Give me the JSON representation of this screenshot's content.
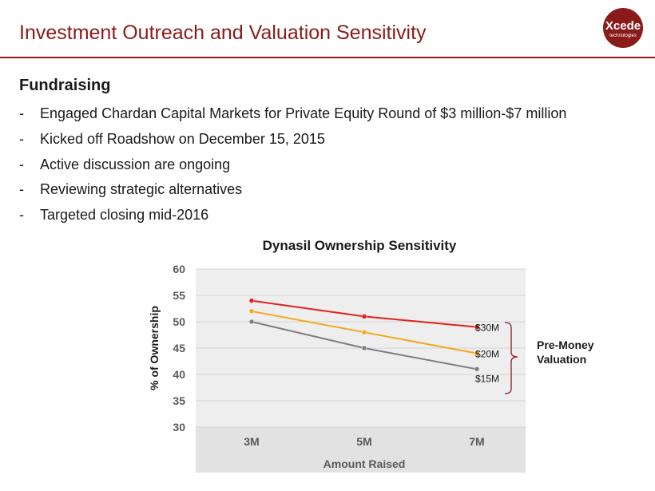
{
  "slide": {
    "title": "Investment Outreach and Valuation Sensitivity",
    "logo": {
      "name": "Xcede",
      "tagline": "technologies",
      "color": "#8b1a1a"
    },
    "section_heading": "Fundraising",
    "bullet_marker": "-",
    "bullets": [
      "Engaged Chardan Capital Markets for Private Equity Round of $3 million-$7 million",
      "Kicked off Roadshow on December 15, 2015",
      "Active discussion are ongoing",
      "Reviewing strategic alternatives",
      "Targeted closing mid-2016"
    ],
    "bracket_label": "Pre-Money Valuation",
    "accent_color": "#8b1a1a"
  },
  "chart_data": {
    "type": "line",
    "title": "Dynasil Ownership Sensitivity",
    "xlabel": "Amount Raised",
    "ylabel": "% of Ownership",
    "categories": [
      "3M",
      "5M",
      "7M"
    ],
    "ylim": [
      30,
      60
    ],
    "yticks": [
      30,
      35,
      40,
      45,
      50,
      55,
      60
    ],
    "grid": true,
    "series": [
      {
        "name": "$30M",
        "values": [
          54,
          51,
          49
        ],
        "color": "#e3211c"
      },
      {
        "name": "$20M",
        "values": [
          52,
          48,
          44
        ],
        "color": "#f5a81e"
      },
      {
        "name": "$15M",
        "values": [
          50,
          45,
          41
        ],
        "color": "#808080"
      }
    ]
  }
}
